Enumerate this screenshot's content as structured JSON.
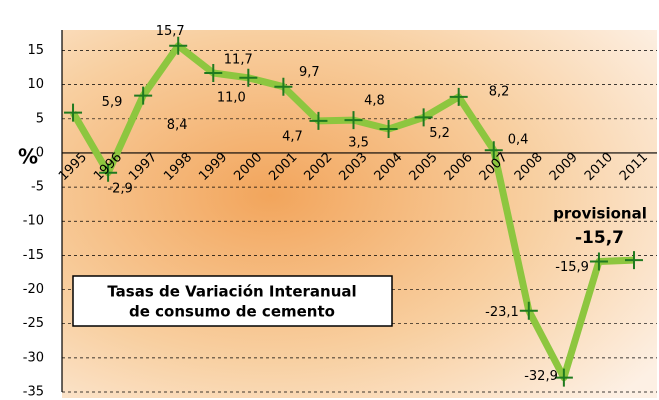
{
  "chart_data": {
    "type": "line",
    "title_lines": [
      "Tasas de Variación Interanual",
      "de consumo de cemento"
    ],
    "y_label": "%",
    "annotation": "provisional",
    "categories": [
      "1995",
      "1996",
      "1997",
      "1998",
      "1999",
      "2000",
      "2001",
      "2002",
      "2003",
      "2004",
      "2005",
      "2006",
      "2007",
      "2008",
      "2009",
      "2010",
      "2011"
    ],
    "values": [
      5.9,
      -2.9,
      8.4,
      15.7,
      11.7,
      11.0,
      9.7,
      4.7,
      4.8,
      3.5,
      5.2,
      8.2,
      0.4,
      -23.1,
      -32.9,
      -15.9,
      -15.7
    ],
    "value_labels": [
      "5,9",
      "-2,9",
      "8,4",
      "15,7",
      "11,7",
      "11,0",
      "9,7",
      "4,7",
      "4,8",
      "3,5",
      "5,2",
      "8,2",
      "0,4",
      "-23,1",
      "-32,9",
      "-15,9",
      "-15,7"
    ],
    "color": "#8dc63f",
    "marker_color": "#1f7a1f",
    "ylim": [
      -35,
      18
    ],
    "yticks": [
      15,
      10,
      5,
      0,
      -5,
      -10,
      -15,
      -20,
      -25,
      -30,
      -35
    ],
    "grid": true
  }
}
